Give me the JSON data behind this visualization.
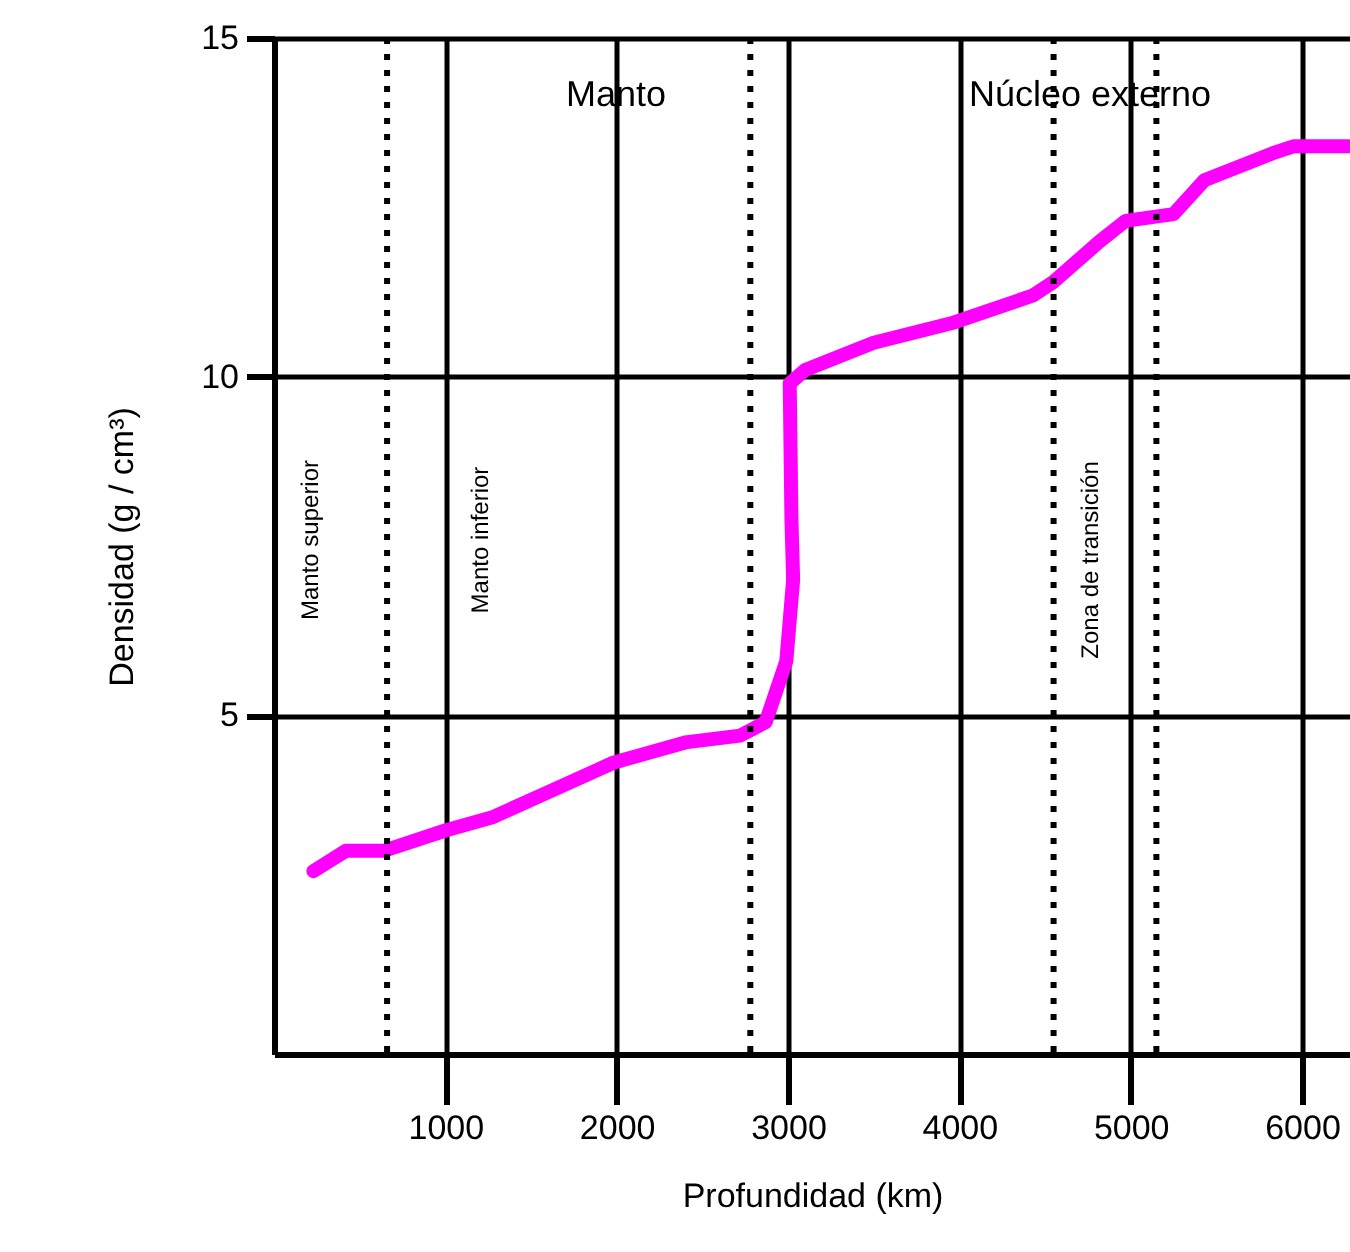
{
  "chart_data": {
    "type": "line",
    "xlabel": "Profundidad (km)",
    "ylabel": "Densidad (g / cm³)",
    "x": [
      230,
      420,
      640,
      1000,
      1280,
      1630,
      1980,
      2400,
      2720,
      2870,
      2990,
      3030,
      3020,
      3010,
      3100,
      3500,
      3970,
      4430,
      4550,
      4820,
      4970,
      5250,
      5430,
      5830,
      5950,
      6270
    ],
    "series": [
      {
        "color": "#ff00ff",
        "values": [
          2.7,
          3.0,
          3.0,
          3.3,
          3.5,
          3.9,
          4.3,
          4.6,
          4.7,
          4.9,
          5.8,
          7.0,
          7.9,
          9.9,
          10.1,
          10.5,
          10.8,
          11.2,
          11.4,
          12.0,
          12.3,
          12.4,
          12.9,
          13.3,
          13.4,
          13.4
        ]
      }
    ],
    "xlim": [
      0,
      6280
    ],
    "ylim": [
      0,
      15
    ],
    "xticks": [
      1000,
      2000,
      3000,
      4000,
      5000,
      6000
    ],
    "yticks": [
      5,
      10,
      15
    ],
    "grid": true,
    "line_style": "solid",
    "ref_lines": [
      {
        "axis": "x",
        "value": 660,
        "line_style": "dotted"
      },
      {
        "axis": "x",
        "value": 2780,
        "line_style": "dotted"
      },
      {
        "axis": "x",
        "value": 4550,
        "line_style": "dotted"
      },
      {
        "axis": "x",
        "value": 5150,
        "line_style": "dotted"
      }
    ],
    "annotations": [
      "Manto",
      "Núcleo externo",
      "Manto superior",
      "Manto inferior",
      "Zona de transición"
    ]
  }
}
